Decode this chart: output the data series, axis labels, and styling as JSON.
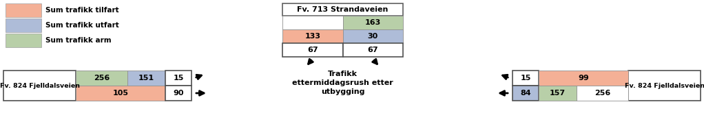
{
  "colors": {
    "tilfart": "#F4B096",
    "utfart": "#AEBCD8",
    "arm": "#B8CFA8",
    "white": "#FFFFFF",
    "bg": "#FFFFFF"
  },
  "legend_labels": [
    "Sum trafikk tilfart",
    "Sum trafikk utfart",
    "Sum trafikk arm"
  ],
  "top_title": "Fv. 713 Strandaveien",
  "center_lines": [
    "Trafikk",
    "ettermiddagsrush etter",
    "utbygging"
  ],
  "left_title": "Fv. 824 Fjelldalsveien",
  "right_title": "Fv. 824 Fjelldalsveien",
  "fig_w": 10.22,
  "fig_h": 1.65,
  "dpi": 100
}
